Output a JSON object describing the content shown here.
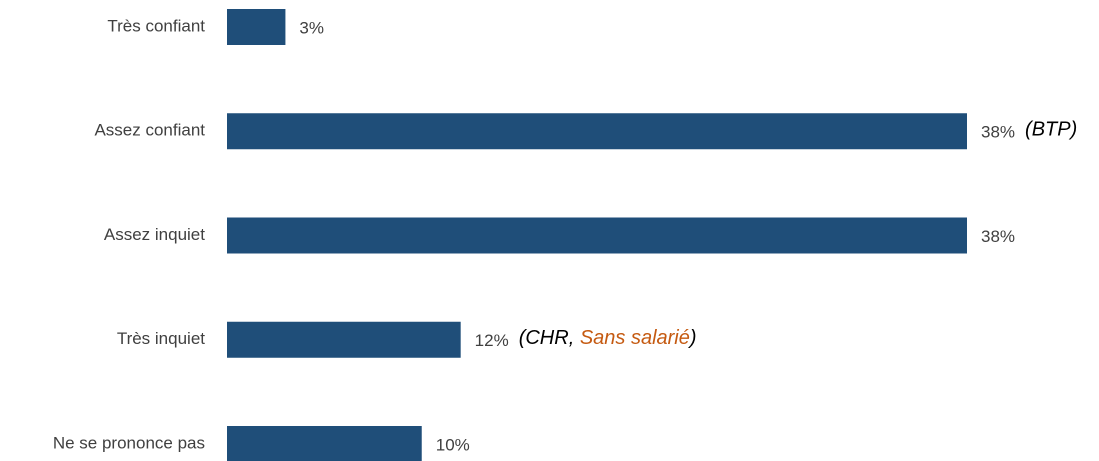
{
  "chart_data": {
    "type": "bar",
    "orientation": "horizontal",
    "categories": [
      "Très confiant",
      "Assez confiant",
      "Assez inquiet",
      "Très inquiet",
      "Ne se prononce pas"
    ],
    "values": [
      3,
      38,
      38,
      12,
      10
    ],
    "value_labels": [
      "3%",
      "38%",
      "38%",
      "12%",
      "10%"
    ],
    "color": "#1f4e79",
    "annotations": [
      null,
      [
        {
          "text": "(BTP)"
        }
      ],
      null,
      [
        {
          "text": "(CHR, "
        },
        {
          "text": "Sans salarié",
          "color": "#c55a11"
        },
        {
          "text": ")"
        }
      ],
      null
    ]
  }
}
